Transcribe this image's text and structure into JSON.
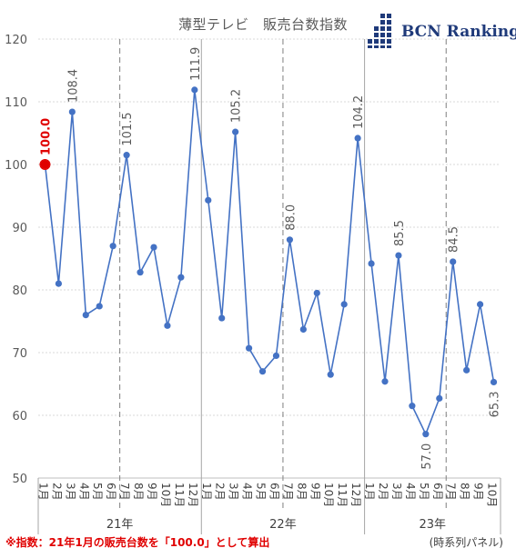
{
  "chart_data": {
    "type": "line",
    "title": "薄型テレビ　販売台数指数",
    "ylim": [
      50,
      120
    ],
    "yticks": [
      "50",
      "60",
      "70",
      "80",
      "90",
      "100",
      "110",
      "120"
    ],
    "grid": true,
    "categories": [
      "1月",
      "2月",
      "3月",
      "4月",
      "5月",
      "6月",
      "7月",
      "8月",
      "9月",
      "10月",
      "11月",
      "12月",
      "1月",
      "2月",
      "3月",
      "4月",
      "5月",
      "6月",
      "7月",
      "8月",
      "9月",
      "10月",
      "11月",
      "12月",
      "1月",
      "2月",
      "3月",
      "4月",
      "5月",
      "6月",
      "7月",
      "8月",
      "9月",
      "10月"
    ],
    "year_labels": [
      "21年",
      "22年",
      "23年"
    ],
    "series": [
      {
        "color": "#4472c4",
        "values": [
          100.0,
          81.0,
          108.4,
          76.0,
          77.4,
          87.0,
          101.5,
          82.8,
          86.8,
          74.3,
          82.0,
          111.9,
          94.3,
          75.5,
          105.2,
          70.7,
          67.0,
          69.5,
          88.0,
          73.7,
          79.5,
          66.5,
          77.7,
          104.2,
          84.2,
          65.4,
          85.5,
          61.5,
          57.0,
          62.7,
          84.5,
          67.2,
          77.7,
          65.3
        ]
      }
    ],
    "data_labels": [
      {
        "index": 0,
        "text": "100.0",
        "color": "#e00000"
      },
      {
        "index": 2,
        "text": "108.4"
      },
      {
        "index": 6,
        "text": "101.5"
      },
      {
        "index": 11,
        "text": "111.9"
      },
      {
        "index": 14,
        "text": "105.2"
      },
      {
        "index": 18,
        "text": "88.0"
      },
      {
        "index": 23,
        "text": "104.2"
      },
      {
        "index": 26,
        "text": "85.5"
      },
      {
        "index": 28,
        "text": "57.0"
      },
      {
        "index": 30,
        "text": "84.5"
      },
      {
        "index": 33,
        "text": "65.3"
      }
    ],
    "highlight_index": 0,
    "highlight_color": "#e00000",
    "dashed_dividers_after": [
      5,
      17,
      29
    ],
    "solid_dividers_after": [
      11,
      23
    ]
  },
  "logo": {
    "text": "BCN Ranking",
    "color": "#1f3a7a"
  },
  "footnote": "※指数：21年1月の販売台数を「100.0」として算出",
  "source": "(時系列パネル)"
}
